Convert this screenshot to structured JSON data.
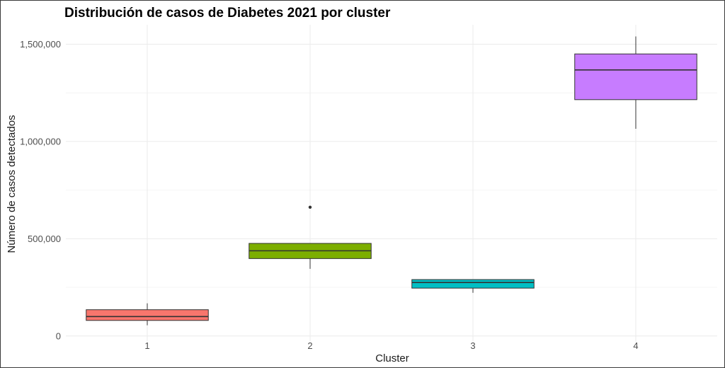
{
  "chart_data": {
    "type": "boxplot",
    "title": "Distribución de casos de Diabetes 2021 por cluster",
    "xlabel": "Cluster",
    "ylabel": "Número de casos detectados",
    "categories": [
      "1",
      "2",
      "3",
      "4"
    ],
    "ylim": [
      -30000,
      1600000
    ],
    "yticks": [
      {
        "value": 0,
        "label": "0"
      },
      {
        "value": 500000,
        "label": "500,000"
      },
      {
        "value": 1000000,
        "label": "1,000,000"
      },
      {
        "value": 1500000,
        "label": "1,500,000"
      }
    ],
    "grid": true,
    "legend": "none",
    "boxes": [
      {
        "category": "1",
        "min": 55000,
        "q1": 80000,
        "median": 100000,
        "q3": 135000,
        "max": 168000,
        "outliers": [],
        "color": "#F8766D"
      },
      {
        "category": "2",
        "min": 345000,
        "q1": 398000,
        "median": 438000,
        "q3": 476000,
        "max": 476000,
        "outliers": [
          662000
        ],
        "color": "#7CAE00"
      },
      {
        "category": "3",
        "min": 222000,
        "q1": 246000,
        "median": 275000,
        "q3": 290000,
        "max": 290000,
        "outliers": [],
        "color": "#00BFC4"
      },
      {
        "category": "4",
        "min": 1065000,
        "q1": 1215000,
        "median": 1368000,
        "q3": 1450000,
        "max": 1540000,
        "outliers": [],
        "color": "#C77CFF"
      }
    ]
  }
}
